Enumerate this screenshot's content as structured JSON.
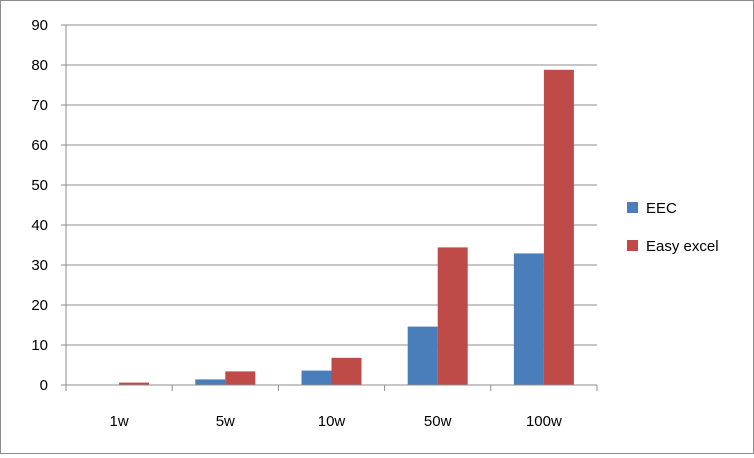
{
  "chart_data": {
    "type": "bar",
    "categories": [
      "1w",
      "5w",
      "10w",
      "50w",
      "100w"
    ],
    "series": [
      {
        "name": "EEC",
        "color": "#4a7ebb",
        "values": [
          0.1,
          1.4,
          3.6,
          14.6,
          32.9
        ]
      },
      {
        "name": "Easy excel",
        "color": "#be4b48",
        "values": [
          0.6,
          3.4,
          6.8,
          34.4,
          78.8
        ]
      }
    ],
    "ylim": [
      0,
      90
    ],
    "yticks": [
      0,
      10,
      20,
      30,
      40,
      50,
      60,
      70,
      80,
      90
    ],
    "grid": true,
    "legend": "right",
    "title": "",
    "xlabel": "",
    "ylabel": ""
  }
}
